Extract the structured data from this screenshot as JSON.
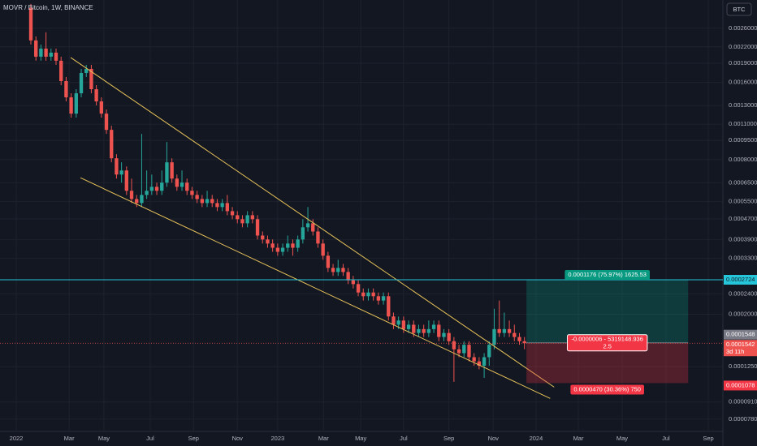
{
  "chart_data": {
    "type": "candlestick",
    "title": "MOVR / Bitcoin, 1W, BINANCE",
    "currency_button": "BTC",
    "log_scale": true,
    "grid": true,
    "up_color": "#26a69a",
    "down_color": "#ef5350",
    "candles": [
      [
        0.00312,
        0.003235,
        0.002247,
        0.002331
      ],
      [
        0.002331,
        0.002417,
        0.001943,
        0.002015
      ],
      [
        0.002015,
        0.002247,
        0.001943,
        0.002167
      ],
      [
        0.002167,
        0.002507,
        0.001943,
        0.002015
      ],
      [
        0.002015,
        0.002167,
        0.001943,
        0.002089
      ],
      [
        0.002089,
        0.002167,
        0.001873,
        0.001943
      ],
      [
        0.001943,
        0.002015,
        0.001561,
        0.001619
      ],
      [
        0.001619,
        0.001679,
        0.001349,
        0.001399
      ],
      [
        0.001399,
        0.001451,
        0.001166,
        0.001209
      ],
      [
        0.001209,
        0.001505,
        0.001166,
        0.001451
      ],
      [
        0.001451,
        0.001806,
        0.001399,
        0.001741
      ],
      [
        0.001741,
        0.001873,
        0.001679,
        0.001806
      ],
      [
        0.001806,
        0.001873,
        0.001451,
        0.001505
      ],
      [
        0.001505,
        0.001561,
        0.001301,
        0.001349
      ],
      [
        0.001349,
        0.001399,
        0.001166,
        0.001209
      ],
      [
        0.001209,
        0.001254,
        0.001008,
        0.001045
      ],
      [
        0.001045,
        0.001084,
        0.000781,
        0.00081
      ],
      [
        0.00081,
        0.00084,
        0.000675,
        0.0007
      ],
      [
        0.0007,
        0.000781,
        0.000651,
        0.000726
      ],
      [
        0.000726,
        0.000753,
        0.000583,
        0.000605
      ],
      [
        0.000605,
        0.000675,
        0.000542,
        0.000562
      ],
      [
        0.000562,
        0.000583,
        0.000523,
        0.000542
      ],
      [
        0.000542,
        0.001008,
        0.000523,
        0.000583
      ],
      [
        0.000583,
        0.000726,
        0.000562,
        0.000605
      ],
      [
        0.000605,
        0.0007,
        0.000583,
        0.000627
      ],
      [
        0.000627,
        0.000651,
        0.000583,
        0.000605
      ],
      [
        0.000605,
        0.000726,
        0.000583,
        0.000651
      ],
      [
        0.000651,
        0.000937,
        0.000627,
        0.000781
      ],
      [
        0.000781,
        0.00081,
        0.000651,
        0.000675
      ],
      [
        0.000675,
        0.0007,
        0.000605,
        0.000627
      ],
      [
        0.000627,
        0.000726,
        0.000605,
        0.000651
      ],
      [
        0.000651,
        0.000675,
        0.000583,
        0.000605
      ],
      [
        0.000605,
        0.000627,
        0.000562,
        0.000583
      ],
      [
        0.000583,
        0.000605,
        0.000542,
        0.000562
      ],
      [
        0.000562,
        0.000583,
        0.000523,
        0.000542
      ],
      [
        0.000542,
        0.000605,
        0.000523,
        0.000562
      ],
      [
        0.000562,
        0.000583,
        0.000523,
        0.000542
      ],
      [
        0.000542,
        0.000562,
        0.000504,
        0.000523
      ],
      [
        0.000523,
        0.000562,
        0.000504,
        0.000542
      ],
      [
        0.000542,
        0.000583,
        0.000486,
        0.000504
      ],
      [
        0.000504,
        0.000523,
        0.000469,
        0.000486
      ],
      [
        0.000486,
        0.000504,
        0.000452,
        0.000469
      ],
      [
        0.000469,
        0.000486,
        0.000436,
        0.000452
      ],
      [
        0.000452,
        0.000504,
        0.000436,
        0.000486
      ],
      [
        0.000486,
        0.000504,
        0.000452,
        0.000469
      ],
      [
        0.000469,
        0.000486,
        0.000391,
        0.000405
      ],
      [
        0.000405,
        0.00042,
        0.000377,
        0.000391
      ],
      [
        0.000391,
        0.000405,
        0.000363,
        0.000377
      ],
      [
        0.000377,
        0.000391,
        0.00035,
        0.000363
      ],
      [
        0.000363,
        0.000377,
        0.000338,
        0.00035
      ],
      [
        0.00035,
        0.000377,
        0.000338,
        0.000363
      ],
      [
        0.000363,
        0.000405,
        0.00035,
        0.000377
      ],
      [
        0.000377,
        0.000391,
        0.000338,
        0.000363
      ],
      [
        0.000363,
        0.000405,
        0.00035,
        0.000391
      ],
      [
        0.000391,
        0.000469,
        0.000377,
        0.000436
      ],
      [
        0.000436,
        0.000523,
        0.00042,
        0.000452
      ],
      [
        0.000452,
        0.000469,
        0.000405,
        0.00042
      ],
      [
        0.00042,
        0.000436,
        0.000363,
        0.000377
      ],
      [
        0.000377,
        0.000391,
        0.000326,
        0.000338
      ],
      [
        0.000338,
        0.00035,
        0.000292,
        0.000303
      ],
      [
        0.000303,
        0.000314,
        0.000282,
        0.000292
      ],
      [
        0.000292,
        0.000326,
        0.000282,
        0.000303
      ],
      [
        0.000303,
        0.000314,
        0.000282,
        0.000292
      ],
      [
        0.000292,
        0.000303,
        0.000262,
        0.000271
      ],
      [
        0.000271,
        0.000282,
        0.000252,
        0.000262
      ],
      [
        0.000262,
        0.000271,
        0.000235,
        0.000243
      ],
      [
        0.000243,
        0.000252,
        0.000226,
        0.000235
      ],
      [
        0.000235,
        0.000252,
        0.000226,
        0.000243
      ],
      [
        0.000243,
        0.000252,
        0.000226,
        0.000235
      ],
      [
        0.000235,
        0.000243,
        0.000218,
        0.000226
      ],
      [
        0.000226,
        0.000243,
        0.000218,
        0.000235
      ],
      [
        0.000235,
        0.000243,
        0.000189,
        0.000196
      ],
      [
        0.000196,
        0.000203,
        0.000175,
        0.000182
      ],
      [
        0.000182,
        0.000196,
        0.000175,
        0.000189
      ],
      [
        0.000189,
        0.000196,
        0.000169,
        0.000175
      ],
      [
        0.000175,
        0.000189,
        0.000169,
        0.000182
      ],
      [
        0.000182,
        0.000189,
        0.000163,
        0.000169
      ],
      [
        0.000169,
        0.000182,
        0.000163,
        0.000175
      ],
      [
        0.000175,
        0.000182,
        0.000163,
        0.000169
      ],
      [
        0.000169,
        0.000189,
        0.000163,
        0.000175
      ],
      [
        0.000175,
        0.000189,
        0.000169,
        0.000182
      ],
      [
        0.000182,
        0.000189,
        0.000157,
        0.000163
      ],
      [
        0.000163,
        0.000175,
        0.000157,
        0.000169
      ],
      [
        0.000169,
        0.000175,
        0.000152,
        0.000157
      ],
      [
        0.000157,
        0.000163,
        0.000109,
        0.000146
      ],
      [
        0.000146,
        0.000152,
        0.000136,
        0.000141
      ],
      [
        0.000141,
        0.000157,
        0.000136,
        0.000152
      ],
      [
        0.000152,
        0.000157,
        0.000131,
        0.000136
      ],
      [
        0.000136,
        0.000141,
        0.000126,
        0.000131
      ],
      [
        0.000131,
        0.000136,
        0.000122,
        0.000126
      ],
      [
        0.000126,
        0.000141,
        0.000113,
        0.000136
      ],
      [
        0.000136,
        0.000157,
        0.000126,
        0.000152
      ],
      [
        0.000152,
        0.00021,
        0.000146,
        0.000175
      ],
      [
        0.000175,
        0.000226,
        0.000163,
        0.000169
      ],
      [
        0.000169,
        0.000203,
        0.000163,
        0.000175
      ],
      [
        0.000175,
        0.000189,
        0.000163,
        0.000169
      ],
      [
        0.000169,
        0.000182,
        0.000157,
        0.000163
      ],
      [
        0.000163,
        0.000169,
        0.000152,
        0.000157
      ],
      [
        0.000157,
        0.000163,
        0.000146,
        0.0001542
      ]
    ],
    "xlim": [
      -6.13,
      137.4
    ],
    "xticks": [
      {
        "value": -2.9,
        "label": "2022"
      },
      {
        "value": 7.6,
        "label": "Mar"
      },
      {
        "value": 14.5,
        "label": "May"
      },
      {
        "value": 23.7,
        "label": "Jul"
      },
      {
        "value": 32.3,
        "label": "Sep"
      },
      {
        "value": 41,
        "label": "Nov"
      },
      {
        "value": 49,
        "label": "2023"
      },
      {
        "value": 58.1,
        "label": "Mar"
      },
      {
        "value": 65.5,
        "label": "May"
      },
      {
        "value": 74,
        "label": "Jul"
      },
      {
        "value": 83,
        "label": "Sep"
      },
      {
        "value": 91.8,
        "label": "Nov"
      },
      {
        "value": 100.3,
        "label": "2024"
      },
      {
        "value": 108.7,
        "label": "Mar"
      },
      {
        "value": 117.4,
        "label": "May"
      },
      {
        "value": 126.1,
        "label": "Jul"
      },
      {
        "value": 134.5,
        "label": "Sep"
      }
    ],
    "ylim": [
      6.99e-05,
      0.00335
    ],
    "yticks": [
      {
        "value": 0.0026,
        "label": "0.0026000"
      },
      {
        "value": 0.0022,
        "label": "0.0022000"
      },
      {
        "value": 0.0019,
        "label": "0.0019000"
      },
      {
        "value": 0.0016,
        "label": "0.0016000"
      },
      {
        "value": 0.0013,
        "label": "0.0013000"
      },
      {
        "value": 0.0011,
        "label": "0.0011000"
      },
      {
        "value": 0.00095,
        "label": "0.0009500"
      },
      {
        "value": 0.0008,
        "label": "0.0008000"
      },
      {
        "value": 0.00065,
        "label": "0.0006500"
      },
      {
        "value": 0.00055,
        "label": "0.0005500"
      },
      {
        "value": 0.00047,
        "label": "0.0004700"
      },
      {
        "value": 0.00039,
        "label": "0.0003900"
      },
      {
        "value": 0.00033,
        "label": "0.0003300"
      },
      {
        "value": 0.00024,
        "label": "0.0002400"
      },
      {
        "value": 0.0002,
        "label": "0.0002000"
      },
      {
        "value": 0.000125,
        "label": "0.0001250"
      },
      {
        "value": 9.1e-05,
        "label": "0.0000910"
      },
      {
        "value": 7.8e-05,
        "label": "0.0000780"
      }
    ],
    "trendlines": [
      {
        "color": "#e8c35a",
        "points": [
          [
            7.9,
            0.002
          ],
          [
            103.9,
            0.000104
          ]
        ]
      },
      {
        "color": "#e8c35a",
        "points": [
          [
            9.84,
            0.00068
          ],
          [
            103.1,
            9.4e-05
          ]
        ]
      }
    ],
    "hline": {
      "value": 0.0002724,
      "label": "0.0002724",
      "color": "#26c6da"
    },
    "position": {
      "start": 98.4,
      "end": 130.5,
      "target": 0.0002724,
      "entry": {
        "value": 0.0001548,
        "label": "0.0001548"
      },
      "stop": {
        "value": 0.0001078,
        "label": "0.0001078"
      },
      "target_label": "0.0001176 (75.97%) 1625.53",
      "center_label": [
        "-0.0000006 - 5319148.936",
        "2.5"
      ],
      "stop_label": "0.0000470 (30.36%) 750"
    },
    "last_price": {
      "value": 0.0001542,
      "label": "0.0001542",
      "countdown": "3d 11h"
    }
  }
}
